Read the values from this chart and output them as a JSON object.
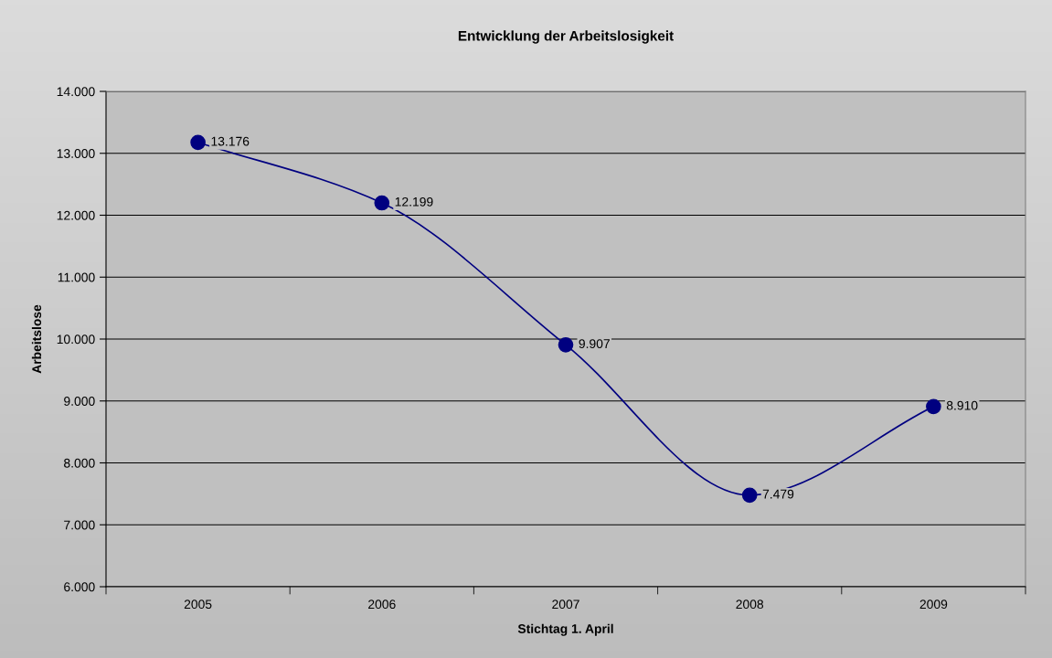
{
  "chart_data": {
    "type": "line",
    "title": "Entwicklung der Arbeitslosigkeit",
    "xlabel": "Stichtag 1. April",
    "ylabel": "Arbeitslose",
    "categories": [
      "2005",
      "2006",
      "2007",
      "2008",
      "2009"
    ],
    "series": [
      {
        "color": "#000080",
        "values": [
          13176,
          12199,
          9907,
          7479,
          8910
        ],
        "value_labels": [
          "13.176",
          "12.199",
          "9.907",
          "7.479",
          "8.910"
        ]
      }
    ],
    "ylim": [
      6000,
      14000
    ],
    "yticks": [
      {
        "value": 6000,
        "label": "6.000"
      },
      {
        "value": 7000,
        "label": "7.000"
      },
      {
        "value": 8000,
        "label": "8.000"
      },
      {
        "value": 9000,
        "label": "9.000"
      },
      {
        "value": 10000,
        "label": "10.000"
      },
      {
        "value": 11000,
        "label": "11.000"
      },
      {
        "value": 12000,
        "label": "12.000"
      },
      {
        "value": 13000,
        "label": "13.000"
      },
      {
        "value": 14000,
        "label": "14.000"
      }
    ],
    "grid": "y",
    "marker": "circle",
    "line_style": "solid"
  }
}
